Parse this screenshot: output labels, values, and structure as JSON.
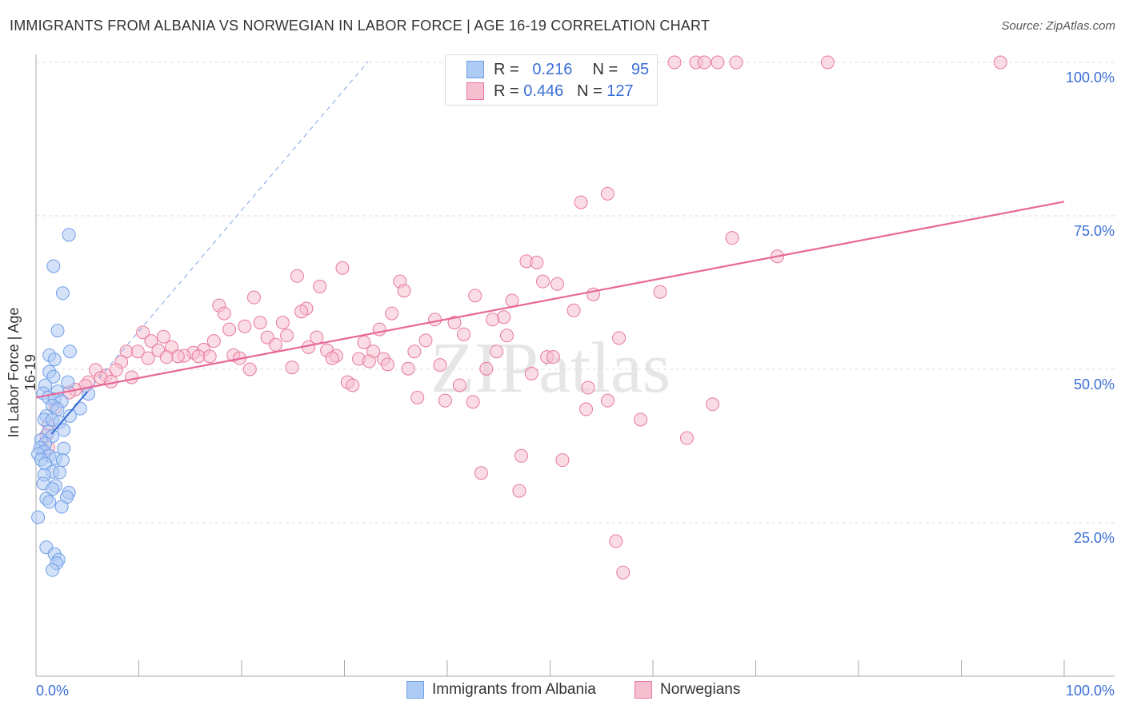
{
  "title": "IMMIGRANTS FROM ALBANIA VS NORWEGIAN IN LABOR FORCE | AGE 16-19 CORRELATION CHART",
  "source": "Source: ZipAtlas.com",
  "watermark": "ZIPatlas",
  "legend": {
    "rows": [
      {
        "r_label": "R =",
        "r": "0.216",
        "n_label": "N =",
        "n": "95"
      },
      {
        "r_label": "R =",
        "r": "0.446",
        "n_label": "N =",
        "n": "127"
      }
    ]
  },
  "chart_data": {
    "type": "scatter",
    "title": "IMMIGRANTS FROM ALBANIA VS NORWEGIAN IN LABOR FORCE | AGE 16-19 CORRELATION CHART",
    "xlabel": "",
    "ylabel": "In Labor Force | Age 16-19",
    "xlim": [
      0,
      100
    ],
    "ylim": [
      0,
      100
    ],
    "x_tick_labels": [
      "0.0%",
      "100.0%"
    ],
    "y_tick_labels": [
      "100.0%",
      "75.0%",
      "50.0%",
      "25.0%"
    ],
    "y_ticks": [
      100,
      75,
      50,
      25
    ],
    "legend_placement": "bottom",
    "series": [
      {
        "name": "Immigrants from Albania",
        "color": "#6f9ee8",
        "fill": "#aecbf4",
        "R": 0.216,
        "N": 95,
        "trend": {
          "intercept": 36.5,
          "slope": 1.97,
          "solid_range": [
            1.5,
            5
          ],
          "dashed_to": 32.3
        },
        "points": [
          [
            3.2,
            71.9
          ],
          [
            1.7,
            66.8
          ],
          [
            2.6,
            62.4
          ],
          [
            2.1,
            56.3
          ],
          [
            3.3,
            52.9
          ],
          [
            1.3,
            52.3
          ],
          [
            1.8,
            51.6
          ],
          [
            1.3,
            49.6
          ],
          [
            1.7,
            48.8
          ],
          [
            3.1,
            47.9
          ],
          [
            0.9,
            47.4
          ],
          [
            2.1,
            46.4
          ],
          [
            5.1,
            46.0
          ],
          [
            0.7,
            46.1
          ],
          [
            1.2,
            45.4
          ],
          [
            1.8,
            45.1
          ],
          [
            2.5,
            44.8
          ],
          [
            1.6,
            44.1
          ],
          [
            2.1,
            43.5
          ],
          [
            4.3,
            43.6
          ],
          [
            3.3,
            42.4
          ],
          [
            1.0,
            42.4
          ],
          [
            0.8,
            41.8
          ],
          [
            1.6,
            41.8
          ],
          [
            2.3,
            41.4
          ],
          [
            2.7,
            40.1
          ],
          [
            1.2,
            39.8
          ],
          [
            1.6,
            39.1
          ],
          [
            0.5,
            38.5
          ],
          [
            0.9,
            37.9
          ],
          [
            0.4,
            37.2
          ],
          [
            2.7,
            37.1
          ],
          [
            0.8,
            36.6
          ],
          [
            0.2,
            36.2
          ],
          [
            1.3,
            35.9
          ],
          [
            1.9,
            35.5
          ],
          [
            2.6,
            35.2
          ],
          [
            0.5,
            35.3
          ],
          [
            0.9,
            34.6
          ],
          [
            1.6,
            33.3
          ],
          [
            2.3,
            33.2
          ],
          [
            0.8,
            32.8
          ],
          [
            0.7,
            31.4
          ],
          [
            1.9,
            31.0
          ],
          [
            1.6,
            30.5
          ],
          [
            3.2,
            29.9
          ],
          [
            3.0,
            29.2
          ],
          [
            1.0,
            28.9
          ],
          [
            1.3,
            28.4
          ],
          [
            2.5,
            27.6
          ],
          [
            0.2,
            25.9
          ],
          [
            1.0,
            21.0
          ],
          [
            1.8,
            19.9
          ],
          [
            2.2,
            19.0
          ],
          [
            2.0,
            18.4
          ],
          [
            1.6,
            17.3
          ]
        ]
      },
      {
        "name": "Norwegians",
        "color": "#e8799c",
        "fill": "#f6bfd0",
        "R": 0.446,
        "N": 127,
        "trend": {
          "intercept": 45.4,
          "slope": 0.319
        },
        "points": [
          [
            62.1,
            100
          ],
          [
            64.2,
            100
          ],
          [
            65.0,
            100
          ],
          [
            66.3,
            100
          ],
          [
            68.1,
            100
          ],
          [
            77.0,
            100
          ],
          [
            93.8,
            100
          ],
          [
            55.6,
            78.6
          ],
          [
            53.0,
            77.2
          ],
          [
            67.7,
            71.4
          ],
          [
            72.1,
            68.4
          ],
          [
            47.7,
            67.6
          ],
          [
            48.7,
            67.4
          ],
          [
            29.8,
            66.5
          ],
          [
            25.4,
            65.2
          ],
          [
            35.4,
            64.3
          ],
          [
            49.3,
            64.3
          ],
          [
            50.7,
            63.9
          ],
          [
            27.6,
            63.5
          ],
          [
            35.8,
            62.8
          ],
          [
            21.2,
            61.7
          ],
          [
            42.7,
            62.0
          ],
          [
            54.2,
            62.2
          ],
          [
            60.7,
            62.6
          ],
          [
            46.3,
            61.2
          ],
          [
            17.8,
            60.4
          ],
          [
            26.3,
            59.9
          ],
          [
            18.3,
            59.1
          ],
          [
            25.8,
            59.4
          ],
          [
            34.6,
            59.1
          ],
          [
            52.3,
            59.6
          ],
          [
            45.5,
            58.5
          ],
          [
            44.4,
            58.1
          ],
          [
            38.8,
            58.1
          ],
          [
            40.7,
            57.6
          ],
          [
            21.8,
            57.6
          ],
          [
            24.0,
            57.6
          ],
          [
            20.3,
            57.0
          ],
          [
            18.8,
            56.5
          ],
          [
            33.4,
            56.5
          ],
          [
            10.4,
            56.0
          ],
          [
            41.6,
            55.7
          ],
          [
            45.8,
            55.5
          ],
          [
            24.4,
            55.5
          ],
          [
            12.4,
            55.3
          ],
          [
            22.5,
            55.2
          ],
          [
            27.3,
            55.2
          ],
          [
            56.7,
            55.1
          ],
          [
            11.2,
            54.6
          ],
          [
            17.3,
            54.6
          ],
          [
            37.9,
            54.7
          ],
          [
            31.9,
            54.4
          ],
          [
            23.3,
            54.0
          ],
          [
            26.5,
            53.6
          ],
          [
            13.2,
            53.6
          ],
          [
            8.8,
            52.9
          ],
          [
            44.8,
            52.9
          ],
          [
            11.9,
            53.1
          ],
          [
            16.3,
            53.2
          ],
          [
            28.3,
            53.1
          ],
          [
            9.9,
            52.9
          ],
          [
            32.8,
            52.9
          ],
          [
            36.8,
            52.9
          ],
          [
            15.3,
            52.7
          ],
          [
            14.4,
            52.2
          ],
          [
            19.2,
            52.3
          ],
          [
            29.2,
            52.2
          ],
          [
            15.8,
            52.1
          ],
          [
            16.9,
            52.1
          ],
          [
            13.8,
            52.1
          ],
          [
            12.7,
            52.0
          ],
          [
            10.9,
            51.8
          ],
          [
            19.8,
            51.8
          ],
          [
            31.4,
            51.7
          ],
          [
            33.8,
            51.7
          ],
          [
            28.8,
            51.8
          ],
          [
            32.4,
            51.3
          ],
          [
            49.7,
            52.0
          ],
          [
            50.3,
            52.0
          ],
          [
            8.3,
            51.2
          ],
          [
            34.2,
            50.8
          ],
          [
            39.3,
            50.7
          ],
          [
            43.8,
            50.1
          ],
          [
            24.9,
            50.3
          ],
          [
            20.8,
            50.0
          ],
          [
            36.2,
            50.1
          ],
          [
            7.8,
            49.9
          ],
          [
            5.8,
            49.9
          ],
          [
            48.2,
            49.3
          ],
          [
            6.8,
            49.0
          ],
          [
            9.3,
            48.7
          ],
          [
            6.3,
            48.6
          ],
          [
            7.3,
            48.0
          ],
          [
            5.1,
            47.9
          ],
          [
            30.3,
            47.9
          ],
          [
            41.2,
            47.4
          ],
          [
            30.8,
            47.4
          ],
          [
            53.7,
            47.0
          ],
          [
            4.8,
            47.3
          ],
          [
            3.8,
            46.7
          ],
          [
            3.2,
            46.2
          ],
          [
            37.1,
            45.4
          ],
          [
            39.8,
            44.9
          ],
          [
            42.5,
            44.7
          ],
          [
            55.6,
            44.9
          ],
          [
            65.8,
            44.3
          ],
          [
            53.5,
            43.5
          ],
          [
            58.8,
            41.8
          ],
          [
            1.9,
            43.8
          ],
          [
            1.2,
            41.1
          ],
          [
            1.0,
            39.2
          ],
          [
            1.2,
            37.2
          ],
          [
            63.3,
            38.8
          ],
          [
            47.2,
            35.9
          ],
          [
            51.2,
            35.2
          ],
          [
            43.3,
            33.1
          ],
          [
            47.0,
            30.2
          ],
          [
            56.4,
            22.0
          ],
          [
            57.1,
            16.9
          ]
        ]
      }
    ]
  }
}
